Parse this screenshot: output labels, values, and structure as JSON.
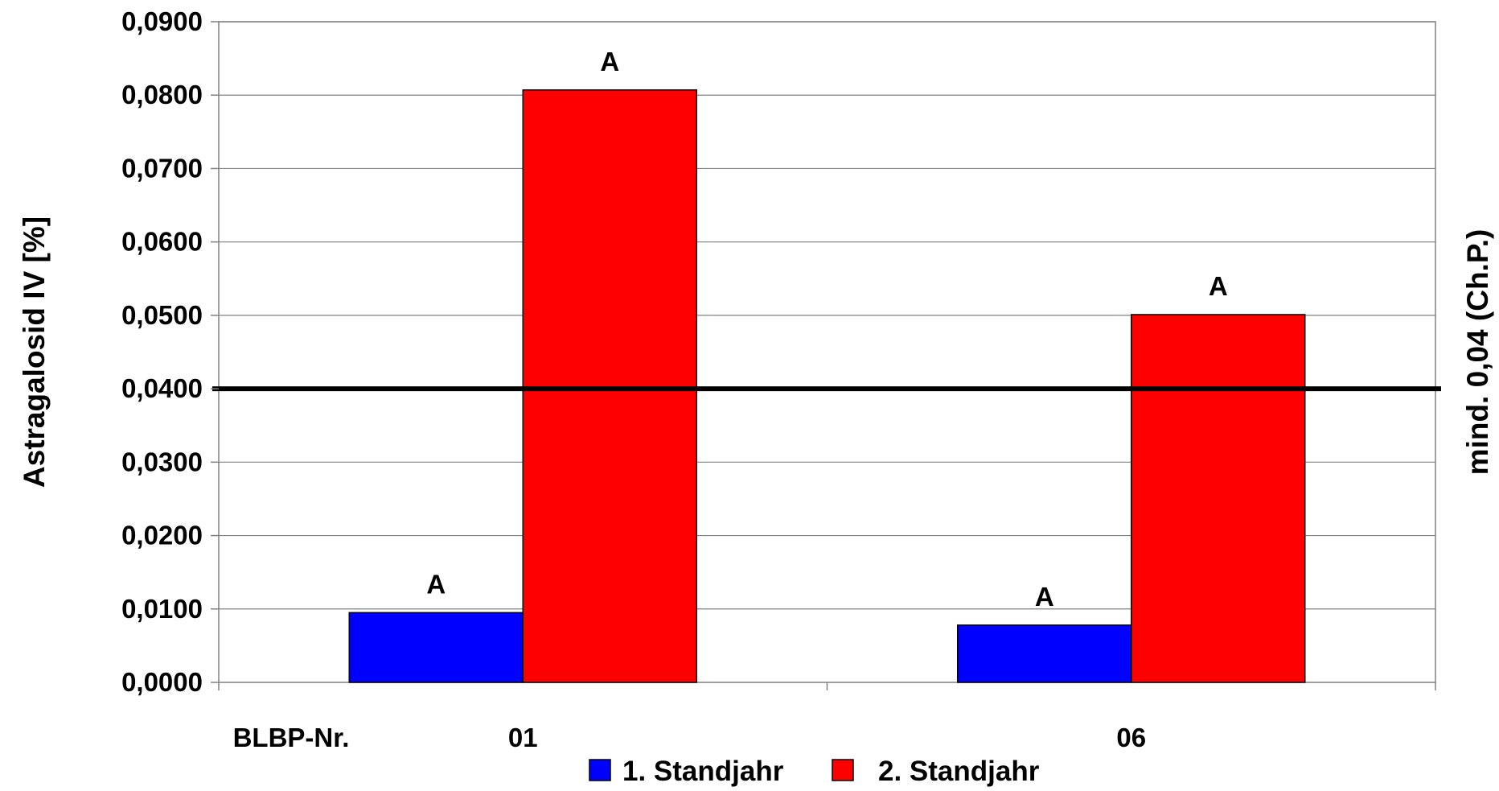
{
  "chart_data": {
    "type": "bar",
    "x_axis_label": "BLBP-Nr.",
    "categories": [
      "01",
      "06"
    ],
    "series": [
      {
        "name": "1. Standjahr",
        "values": [
          0.0095,
          0.0078
        ],
        "color": "#0000ff",
        "labels": [
          "A",
          "A"
        ]
      },
      {
        "name": "2. Standjahr",
        "values": [
          0.0807,
          0.0501
        ],
        "color": "#ff0000",
        "labels": [
          "A",
          "A"
        ]
      }
    ],
    "ylabel": "Astragalosid IV [%]",
    "secondary_ylabel": "mind. 0,04 (Ch.P.)",
    "ylim": [
      0,
      0.09
    ],
    "yticks": [
      "0,0000",
      "0,0100",
      "0,0200",
      "0,0300",
      "0,0400",
      "0,0500",
      "0,0600",
      "0,0700",
      "0,0800",
      "0,0900"
    ],
    "reference_line": {
      "value": 0.04,
      "color": "#000000"
    },
    "grid": true,
    "legend_position": "bottom"
  }
}
